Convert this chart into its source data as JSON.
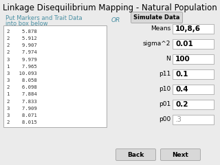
{
  "title": "Linkage Disequilibrium Mapping - Natural Population",
  "title_fontsize": 8.5,
  "left_label_line1": "Put Markers and Trait Data",
  "left_label_line2": "into box below",
  "left_label_color": "#4a90a4",
  "or_text": "OR",
  "or_color": "#4a90a4",
  "simulate_button": "Simulate Data",
  "data_lines": [
    "2    5.878",
    "2    5.912",
    "2    9.907",
    "2    7.974",
    "3    9.979",
    "1    7.965",
    "3   10.093",
    "3    8.058",
    "2    6.098",
    "1    7.884",
    "2    7.833",
    "3    7.909",
    "3    8.071",
    "2    8.015"
  ],
  "params": [
    {
      "label": "Means",
      "value": "10,8,6",
      "bold": true,
      "gray": false
    },
    {
      "label": "sigma^2",
      "value": "0.01",
      "bold": true,
      "gray": false
    },
    {
      "label": "N",
      "value": "100",
      "bold": true,
      "gray": false
    },
    {
      "label": "p11",
      "value": "0.1",
      "bold": true,
      "gray": false
    },
    {
      "label": "p10",
      "value": "0.4",
      "bold": true,
      "gray": false
    },
    {
      "label": "p01",
      "value": "0.2",
      "bold": true,
      "gray": false
    },
    {
      "label": "p00",
      "value": ".3",
      "bold": false,
      "gray": true
    }
  ],
  "back_button": "Back",
  "next_button": "Next",
  "bg_color": "#ebebeb",
  "box_bg": "#ffffff",
  "button_bg": "#d8d8d8",
  "input_bg": "#ffffff",
  "border_color": "#aaaaaa"
}
